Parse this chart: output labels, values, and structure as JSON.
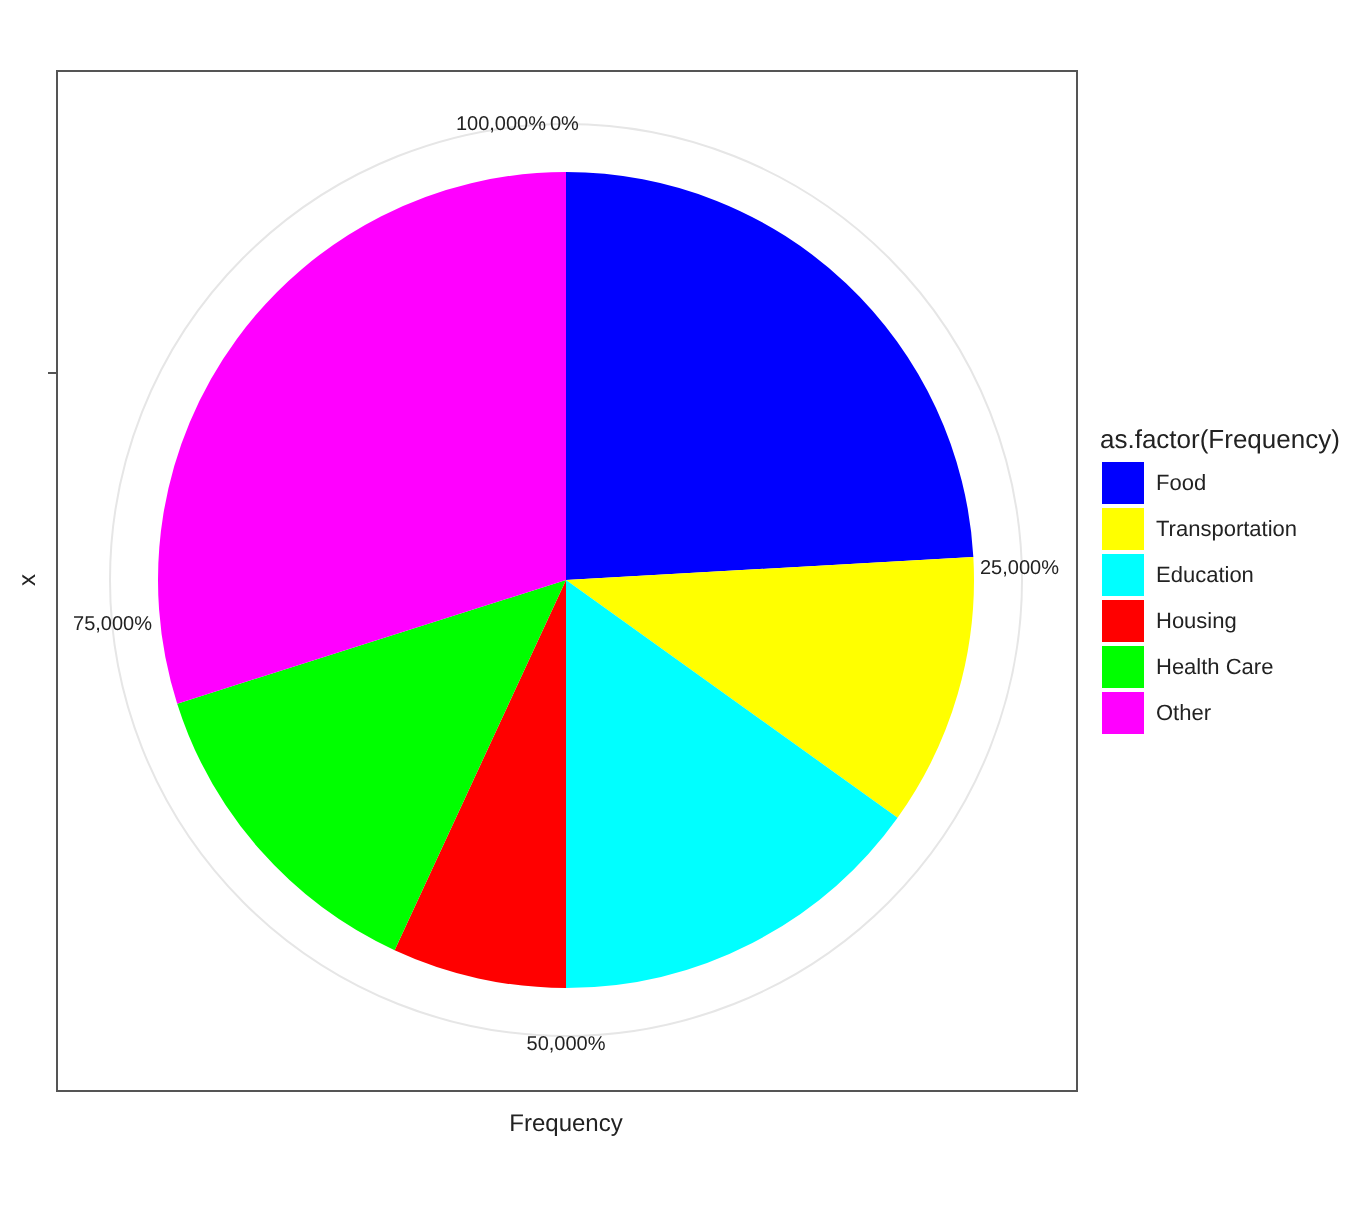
{
  "chart_data": {
    "type": "pie",
    "xlabel": "Frequency",
    "ylabel": "x",
    "legend_title": "as.factor(Frequency)",
    "legend": "right",
    "grid": true,
    "categories": [
      "Food",
      "Transportation",
      "Education",
      "Housing",
      "Health Care",
      "Other"
    ],
    "values": [
      24.1,
      10.8,
      15.1,
      6.9,
      13.2,
      29.9
    ],
    "colors": [
      "#0000ff",
      "#ffff00",
      "#00ffff",
      "#ff0000",
      "#00ff00",
      "#ff00ff"
    ],
    "annotations": [
      "0%",
      "25,000%",
      "50,000%",
      "75,000%",
      "100,000%"
    ]
  }
}
